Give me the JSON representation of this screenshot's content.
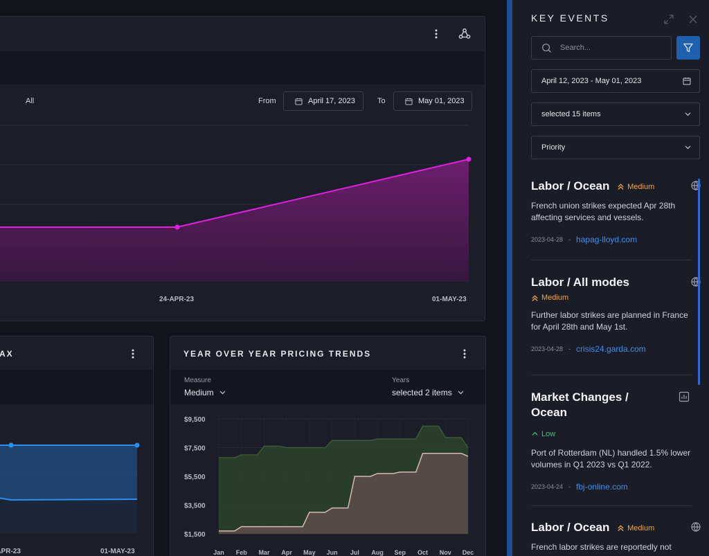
{
  "top_chart": {
    "filter_all": "All",
    "from_label": "From",
    "from_date": "April 17, 2023",
    "to_label": "To",
    "to_date": "May 01, 2023",
    "x_ticks": [
      "24-APR-23",
      "01-MAY-23"
    ],
    "color": "#e020e0"
  },
  "bottom_left": {
    "title": "AX",
    "x_ticks": [
      "-APR-23",
      "01-MAY-23"
    ],
    "color": "#2a8ff0"
  },
  "bottom_right": {
    "title": "YEAR OVER YEAR PRICING TRENDS",
    "measure_label": "Measure",
    "measure_value": "Medium",
    "years_label": "Years",
    "years_value": "selected 2 items"
  },
  "chart_data": [
    {
      "type": "area",
      "title": "",
      "x": [
        "24-APR-23",
        "01-MAY-23"
      ],
      "series": [
        {
          "values": [
            1,
            2
          ]
        }
      ],
      "note_visible_points": 2
    },
    {
      "type": "area",
      "title": "YEAR OVER YEAR PRICING TRENDS",
      "categories": [
        "Jan",
        "Feb",
        "Mar",
        "Apr",
        "May",
        "Jun",
        "Jul",
        "Aug",
        "Sep",
        "Oct",
        "Nov",
        "Dec"
      ],
      "y_ticks": [
        "$9,500",
        "$7,500",
        "$5,500",
        "$3,500",
        "$1,500"
      ],
      "ylim": [
        1500,
        9500
      ],
      "series": [
        {
          "values": [
            6800,
            7000,
            7600,
            7500,
            7500,
            8000,
            8000,
            8100,
            8100,
            9000,
            8200,
            7500
          ],
          "color": "#2f4a2b"
        },
        {
          "values": [
            1700,
            2000,
            2000,
            2000,
            3000,
            3300,
            5500,
            5700,
            5800,
            7100,
            7100,
            6900
          ],
          "color": "#5a4b48"
        }
      ]
    }
  ],
  "sidebar": {
    "title": "KEY EVENTS",
    "search_placeholder": "Search...",
    "date_range": "April 12, 2023 - May 01, 2023",
    "items_select": "selected 15 items",
    "priority_select": "Priority",
    "events": [
      {
        "title": "Labor / Ocean",
        "priority": "Medium",
        "desc": "French union strikes expected Apr 28th affecting services and vessels.",
        "date": "2023-04-28",
        "source": "hapag-lloyd.com"
      },
      {
        "title": "Labor / All modes",
        "priority": "Medium",
        "desc": "Further labor strikes are planned in France for April 28th and May 1st.",
        "date": "2023-04-28",
        "source": "crisis24.garda.com"
      },
      {
        "title": "Market Changes / Ocean",
        "priority": "Low",
        "desc": "Port of Rotterdam (NL) handled 1.5% lower volumes in Q1 2023 vs Q1 2022.",
        "date": "2023-04-24",
        "source": "fbj-online.com"
      },
      {
        "title": "Labor / Ocean",
        "priority": "Medium",
        "desc": "French labor strikes are reportedly not"
      }
    ]
  }
}
